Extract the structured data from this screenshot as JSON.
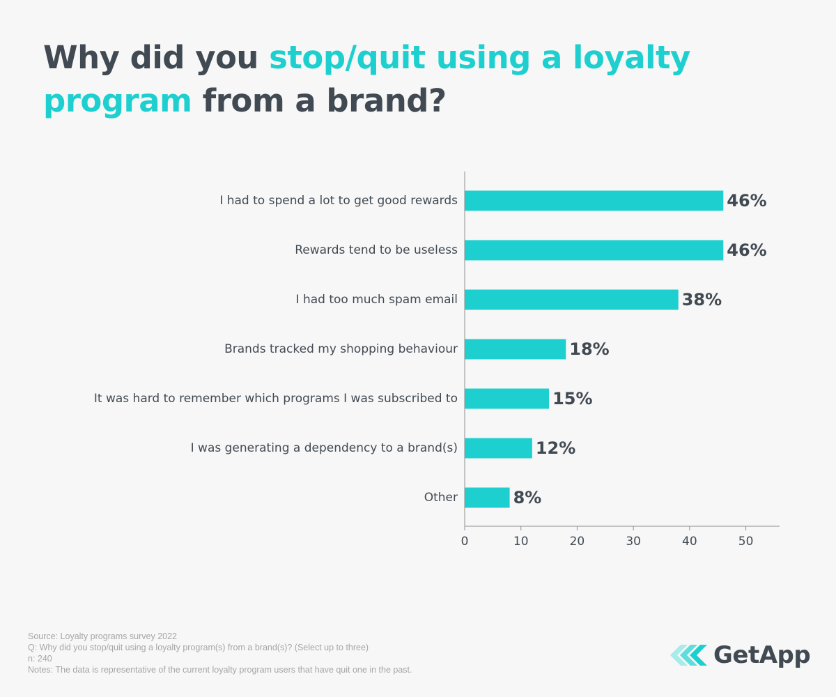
{
  "title": {
    "part1": "Why did you ",
    "part2": "stop/quit using a loyalty program",
    "part3": " from a brand?"
  },
  "colors": {
    "accent": "#1ecfcf",
    "text": "#414a52",
    "muted": "#a6a6a6",
    "background": "#f7f7f7"
  },
  "chart_data": {
    "type": "bar",
    "orientation": "horizontal",
    "categories": [
      "I had to spend a lot to get good rewards",
      "Rewards tend to be useless",
      "I had too much spam email",
      "Brands tracked my shopping behaviour",
      "It was hard to remember which programs I was subscribed to",
      "I was generating a dependency to a brand(s)",
      "Other"
    ],
    "values": [
      46,
      46,
      38,
      18,
      15,
      12,
      8
    ],
    "value_labels": [
      "46%",
      "46%",
      "38%",
      "18%",
      "15%",
      "12%",
      "8%"
    ],
    "xlim": [
      0,
      56
    ],
    "xticks": [
      0,
      10,
      20,
      30,
      40,
      50
    ],
    "grid": false
  },
  "footer": {
    "source": "Source: Loyalty programs survey 2022",
    "question": "Q: Why did you stop/quit using a loyalty program(s) from a brand(s)? (Select up to three)",
    "n": "n: 240",
    "notes": "Notes: The data is representative of the current loyalty program users that have quit one in the past."
  },
  "brand": {
    "name": "GetApp",
    "icon": "getapp-chevrons-icon"
  }
}
